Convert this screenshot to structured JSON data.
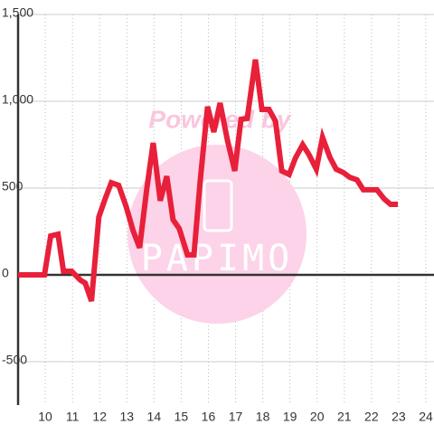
{
  "chart_data": {
    "type": "line",
    "watermark": "Powered by",
    "logo": "PAPIMO",
    "x": [
      9,
      9.97,
      10.2,
      10.47,
      10.67,
      10.97,
      11.3,
      11.47,
      11.7,
      11.97,
      12.2,
      12.43,
      12.7,
      12.97,
      13.23,
      13.47,
      13.73,
      13.97,
      14.23,
      14.47,
      14.7,
      14.93,
      15.23,
      15.47,
      15.7,
      15.97,
      16.2,
      16.43,
      16.7,
      16.97,
      17.2,
      17.43,
      17.73,
      17.97,
      18.23,
      18.47,
      18.7,
      18.97,
      19.2,
      19.47,
      19.7,
      19.97,
      20.2,
      20.47,
      20.7,
      20.97,
      21.2,
      21.47,
      21.7,
      21.97,
      22.2,
      22.47,
      22.7,
      22.97
    ],
    "series": [
      {
        "color": "#e8203a",
        "values": [
          0,
          0,
          224,
          234,
          21,
          21,
          -31,
          -47,
          -151,
          333,
          437,
          531,
          516,
          396,
          255,
          156,
          490,
          760,
          427,
          568,
          318,
          266,
          115,
          115,
          542,
          969,
          823,
          990,
          776,
          599,
          896,
          901,
          1240,
          953,
          953,
          885,
          599,
          578,
          672,
          750,
          693,
          609,
          792,
          677,
          609,
          589,
          562,
          547,
          490,
          490,
          490,
          437,
          406,
          406
        ]
      }
    ],
    "xlim": [
      9,
      24.3
    ],
    "xticks": [
      10,
      11,
      12,
      13,
      14,
      15,
      16,
      17,
      18,
      19,
      20,
      21,
      22,
      23,
      24
    ],
    "ylim": [
      -750,
      1500
    ],
    "yticks": [
      {
        "value": 1500,
        "label": "1,500"
      },
      {
        "value": 1000,
        "label": "1,000"
      },
      500,
      0,
      -500
    ],
    "grid": true
  }
}
